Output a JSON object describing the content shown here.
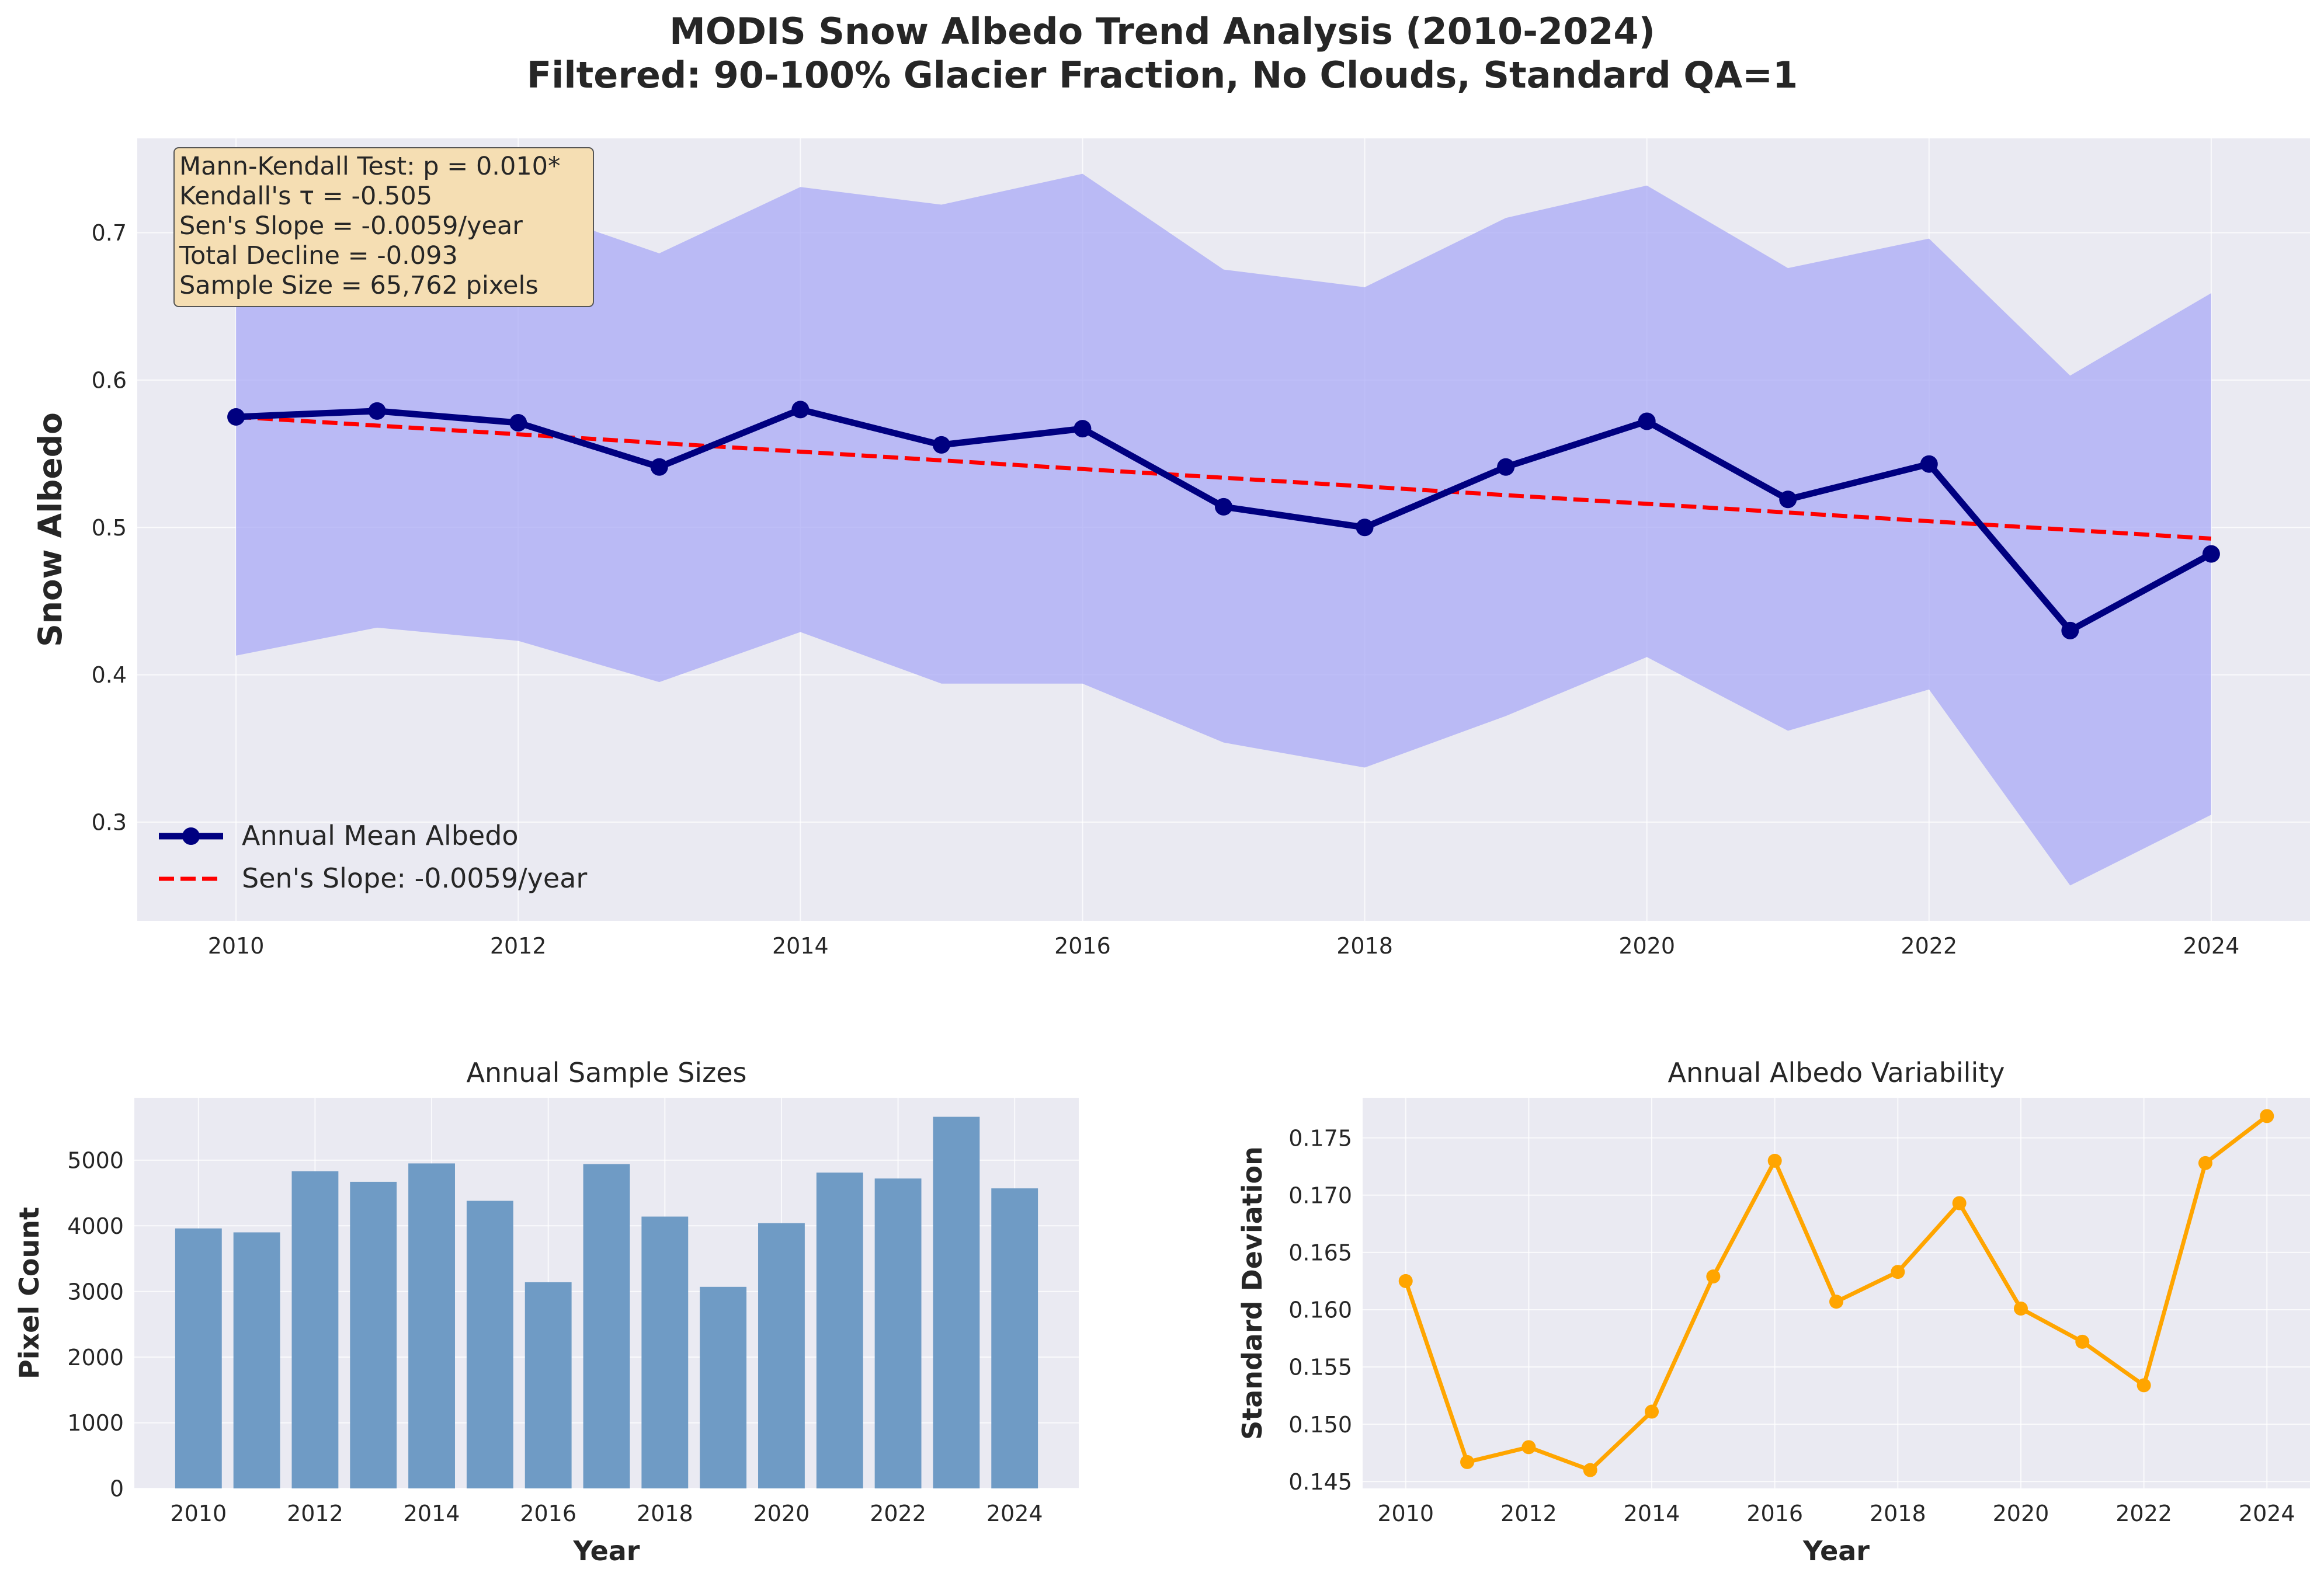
{
  "figure": {
    "title_line1": "MODIS Snow Albedo Trend Analysis (2010-2024)",
    "title_line2": "Filtered: 90-100% Glacier Fraction, No Clouds, Standard QA=1",
    "colors": {
      "background": "#eaeaf2",
      "grid": "#ffffff",
      "mean_line": "#000080",
      "band_fill": "#aaaaf5",
      "trend_line": "#ff0000",
      "bars": "#6f9bc5",
      "std_line": "#ffa500"
    }
  },
  "annotation": [
    "Mann-Kendall Test: p = 0.010*",
    "Kendall's τ = -0.505",
    "Sen's Slope = -0.0059/year",
    "Total Decline = -0.093",
    "Sample Size = 65,762 pixels"
  ],
  "chart_data": [
    {
      "type": "line",
      "title": "",
      "xlabel": "",
      "ylabel": "Snow Albedo",
      "xlim": [
        2009.3,
        2024.7
      ],
      "ylim": [
        0.233,
        0.764
      ],
      "xticks": [
        2010,
        2012,
        2014,
        2016,
        2018,
        2020,
        2022,
        2024
      ],
      "yticks": [
        0.3,
        0.4,
        0.5,
        0.6,
        0.7
      ],
      "ytick_labels": [
        "0.3",
        "0.4",
        "0.5",
        "0.6",
        "0.7"
      ],
      "grid": true,
      "legend_position": "lower-left",
      "x": [
        2010,
        2011,
        2012,
        2013,
        2014,
        2015,
        2016,
        2017,
        2018,
        2019,
        2020,
        2021,
        2022,
        2023,
        2024
      ],
      "series": [
        {
          "name": "Annual Mean Albedo",
          "style": "solid-with-markers",
          "values": [
            0.575,
            0.579,
            0.571,
            0.541,
            0.58,
            0.556,
            0.567,
            0.514,
            0.5,
            0.541,
            0.572,
            0.519,
            0.543,
            0.43,
            0.482
          ]
        },
        {
          "name": "Sen's Slope: -0.0059/year",
          "style": "dashed",
          "values": [
            0.575,
            0.5691,
            0.5632,
            0.5573,
            0.5514,
            0.5455,
            0.5396,
            0.5337,
            0.5278,
            0.5219,
            0.516,
            0.5101,
            0.5042,
            0.4983,
            0.4924
          ]
        }
      ],
      "band": {
        "upper": [
          0.737,
          0.726,
          0.719,
          0.686,
          0.731,
          0.719,
          0.74,
          0.675,
          0.663,
          0.71,
          0.732,
          0.676,
          0.696,
          0.603,
          0.659
        ],
        "lower": [
          0.413,
          0.432,
          0.423,
          0.395,
          0.429,
          0.394,
          0.394,
          0.354,
          0.337,
          0.372,
          0.412,
          0.362,
          0.39,
          0.257,
          0.305
        ]
      }
    },
    {
      "type": "bar",
      "title": "Annual Sample Sizes",
      "xlabel": "Year",
      "ylabel": "Pixel Count",
      "xlim": [
        2008.9,
        2025.1
      ],
      "ylim": [
        0,
        5950
      ],
      "xticks": [
        2010,
        2012,
        2014,
        2016,
        2018,
        2020,
        2022,
        2024
      ],
      "yticks": [
        0,
        1000,
        2000,
        3000,
        4000,
        5000
      ],
      "grid": true,
      "categories": [
        2010,
        2011,
        2012,
        2013,
        2014,
        2015,
        2016,
        2017,
        2018,
        2019,
        2020,
        2021,
        2022,
        2023,
        2024
      ],
      "values": [
        3960,
        3900,
        4830,
        4670,
        4950,
        4380,
        3140,
        4940,
        4140,
        3070,
        4040,
        4810,
        4720,
        5660,
        4570
      ]
    },
    {
      "type": "line",
      "title": "Annual Albedo Variability",
      "xlabel": "Year",
      "ylabel": "Standard Deviation",
      "xlim": [
        2009.3,
        2024.7
      ],
      "ylim": [
        0.1444,
        0.1785
      ],
      "xticks": [
        2010,
        2012,
        2014,
        2016,
        2018,
        2020,
        2022,
        2024
      ],
      "yticks": [
        0.145,
        0.15,
        0.155,
        0.16,
        0.165,
        0.17,
        0.175
      ],
      "ytick_labels": [
        "0.145",
        "0.150",
        "0.155",
        "0.160",
        "0.165",
        "0.170",
        "0.175"
      ],
      "grid": true,
      "x": [
        2010,
        2011,
        2012,
        2013,
        2014,
        2015,
        2016,
        2017,
        2018,
        2019,
        2020,
        2021,
        2022,
        2023,
        2024
      ],
      "values": [
        0.1625,
        0.1467,
        0.148,
        0.146,
        0.1511,
        0.1629,
        0.173,
        0.1607,
        0.1633,
        0.1693,
        0.1601,
        0.1572,
        0.1534,
        0.1728,
        0.1769
      ]
    }
  ]
}
